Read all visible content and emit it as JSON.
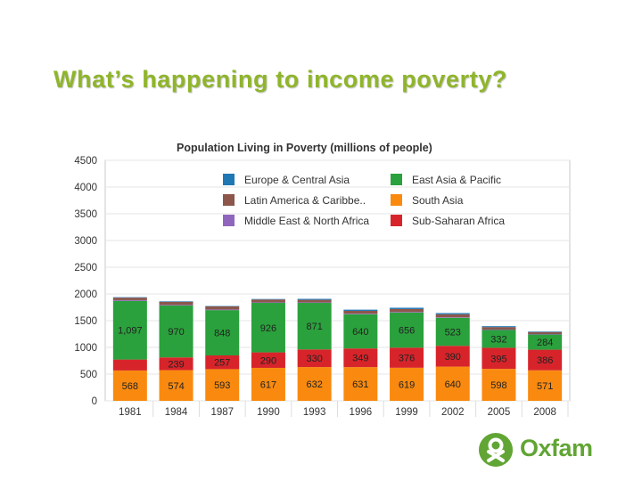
{
  "slide": {
    "title": "What’s happening to income poverty?"
  },
  "logo": {
    "text": "Oxfam"
  },
  "chart_data": {
    "type": "bar",
    "stacked": true,
    "title": "Population Living in Poverty (millions of people)",
    "xlabel": "",
    "ylabel": "",
    "ylim": [
      0,
      4500
    ],
    "yticks": [
      0,
      500,
      1000,
      1500,
      2000,
      2500,
      3000,
      3500,
      4000,
      4500
    ],
    "grid": true,
    "legend_position": "top, inside plot",
    "categories": [
      "1981",
      "1984",
      "1987",
      "1990",
      "1993",
      "1996",
      "1999",
      "2002",
      "2005",
      "2008"
    ],
    "series": [
      {
        "name": "South Asia",
        "color": "#f98a0f",
        "values": [
          568,
          574,
          593,
          617,
          632,
          631,
          619,
          640,
          598,
          571
        ],
        "labels": [
          "568",
          "574",
          "593",
          "617",
          "632",
          "631",
          "619",
          "640",
          "598",
          "571"
        ]
      },
      {
        "name": "Sub-Saharan Africa",
        "color": "#d7242a",
        "values": [
          205,
          239,
          257,
          290,
          330,
          349,
          376,
          390,
          395,
          386
        ],
        "labels": [
          "",
          "239",
          "257",
          "290",
          "330",
          "349",
          "376",
          "390",
          "395",
          "386"
        ]
      },
      {
        "name": "East Asia & Pacific",
        "color": "#2aa13c",
        "values": [
          1097,
          970,
          848,
          926,
          871,
          640,
          656,
          523,
          332,
          284
        ],
        "labels": [
          "1,097",
          "970",
          "848",
          "926",
          "871",
          "640",
          "656",
          "523",
          "332",
          "284"
        ]
      },
      {
        "name": "Middle East & North Africa",
        "color": "#9066bd",
        "values": [
          14,
          12,
          12,
          10,
          10,
          11,
          12,
          10,
          9,
          9
        ],
        "labels": [
          "",
          "",
          "",
          "",
          "",
          "",
          "",
          "",
          "",
          ""
        ]
      },
      {
        "name": "Latin America & Caribbe..",
        "color": "#8c564b",
        "values": [
          47,
          59,
          57,
          53,
          47,
          53,
          55,
          57,
          46,
          37
        ],
        "labels": [
          "",
          "",
          "",
          "",
          "",
          "",
          "",
          "",
          "",
          ""
        ]
      },
      {
        "name": "Europe & Central Asia",
        "color": "#1f77b4",
        "values": [
          8,
          9,
          7,
          9,
          18,
          22,
          24,
          22,
          17,
          10
        ],
        "labels": [
          "",
          "",
          "",
          "",
          "",
          "",
          "",
          "",
          "",
          ""
        ]
      }
    ],
    "legend_order": [
      "Europe & Central Asia",
      "East Asia & Pacific",
      "Latin America & Caribbe..",
      "South Asia",
      "Middle East & North Africa",
      "Sub-Saharan Africa"
    ]
  }
}
